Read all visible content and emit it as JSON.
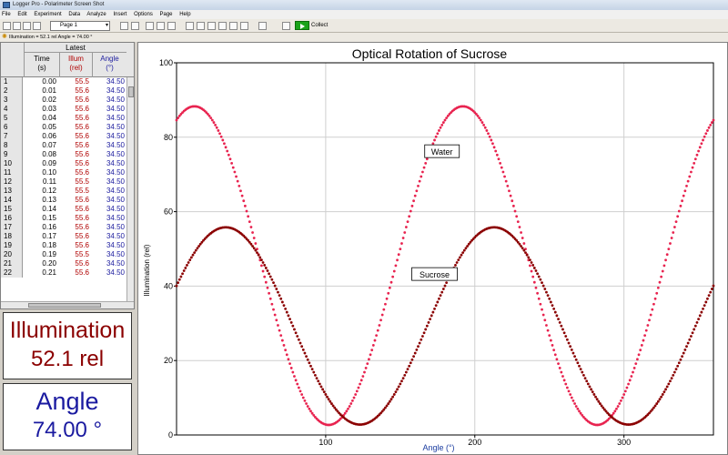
{
  "window": {
    "title": "Logger Pro - Polarimeter Screen Shot"
  },
  "menu": [
    "File",
    "Edit",
    "Experiment",
    "Data",
    "Analyze",
    "Insert",
    "Options",
    "Page",
    "Help"
  ],
  "toolbar": {
    "page_select": "Page 1",
    "collect_label": "Collect"
  },
  "status_line": "Illumination = 52.1 rel  Angle = 74.00 °",
  "table": {
    "group_header": "Latest",
    "columns": [
      {
        "name": "Time",
        "unit": "(s)"
      },
      {
        "name": "Illum",
        "unit": "(rel)"
      },
      {
        "name": "Angle",
        "unit": "(°)"
      }
    ],
    "rows": [
      [
        "1",
        "0.00",
        "55.5",
        "34.50"
      ],
      [
        "2",
        "0.01",
        "55.6",
        "34.50"
      ],
      [
        "3",
        "0.02",
        "55.6",
        "34.50"
      ],
      [
        "4",
        "0.03",
        "55.6",
        "34.50"
      ],
      [
        "5",
        "0.04",
        "55.6",
        "34.50"
      ],
      [
        "6",
        "0.05",
        "55.6",
        "34.50"
      ],
      [
        "7",
        "0.06",
        "55.6",
        "34.50"
      ],
      [
        "8",
        "0.07",
        "55.6",
        "34.50"
      ],
      [
        "9",
        "0.08",
        "55.6",
        "34.50"
      ],
      [
        "10",
        "0.09",
        "55.6",
        "34.50"
      ],
      [
        "11",
        "0.10",
        "55.6",
        "34.50"
      ],
      [
        "12",
        "0.11",
        "55.5",
        "34.50"
      ],
      [
        "13",
        "0.12",
        "55.5",
        "34.50"
      ],
      [
        "14",
        "0.13",
        "55.6",
        "34.50"
      ],
      [
        "15",
        "0.14",
        "55.6",
        "34.50"
      ],
      [
        "16",
        "0.15",
        "55.6",
        "34.50"
      ],
      [
        "17",
        "0.16",
        "55.6",
        "34.50"
      ],
      [
        "18",
        "0.17",
        "55.6",
        "34.50"
      ],
      [
        "19",
        "0.18",
        "55.6",
        "34.50"
      ],
      [
        "20",
        "0.19",
        "55.5",
        "34.50"
      ],
      [
        "21",
        "0.20",
        "55.6",
        "34.50"
      ],
      [
        "22",
        "0.21",
        "55.6",
        "34.50"
      ]
    ]
  },
  "meters": {
    "illumination": {
      "label": "Illumination",
      "value": "52.1 rel"
    },
    "angle": {
      "label": "Angle",
      "value": "74.00 °"
    }
  },
  "colors": {
    "water": "#e8234f",
    "sucrose": "#8b0000",
    "illum_meter": "#8b0000",
    "angle_meter": "#1a1aa0"
  },
  "chart_data": {
    "type": "scatter",
    "title": "Optical Rotation of Sucrose",
    "xlabel": "Angle (°)",
    "ylabel": "Illumination (rel)",
    "xlim": [
      0,
      360
    ],
    "ylim": [
      0,
      100
    ],
    "xticks": [
      100,
      200,
      300
    ],
    "yticks": [
      0,
      20,
      40,
      60,
      80,
      100
    ],
    "grid": true,
    "series": [
      {
        "name": "Water",
        "color": "#e8234f",
        "model": {
          "offset": 45.5,
          "amplitude": 42.8,
          "peak_angle": 12,
          "period": 180
        },
        "x_start": 0,
        "x_end": 360
      },
      {
        "name": "Sucrose",
        "color": "#8b0000",
        "model": {
          "offset": 29.3,
          "amplitude": 26.5,
          "peak_angle": 33,
          "period": 180
        },
        "x_start": 0,
        "x_end": 360
      }
    ],
    "annotations": [
      {
        "text": "Water",
        "x": 178,
        "y": 76
      },
      {
        "text": "Sucrose",
        "x": 173,
        "y": 43
      }
    ]
  }
}
